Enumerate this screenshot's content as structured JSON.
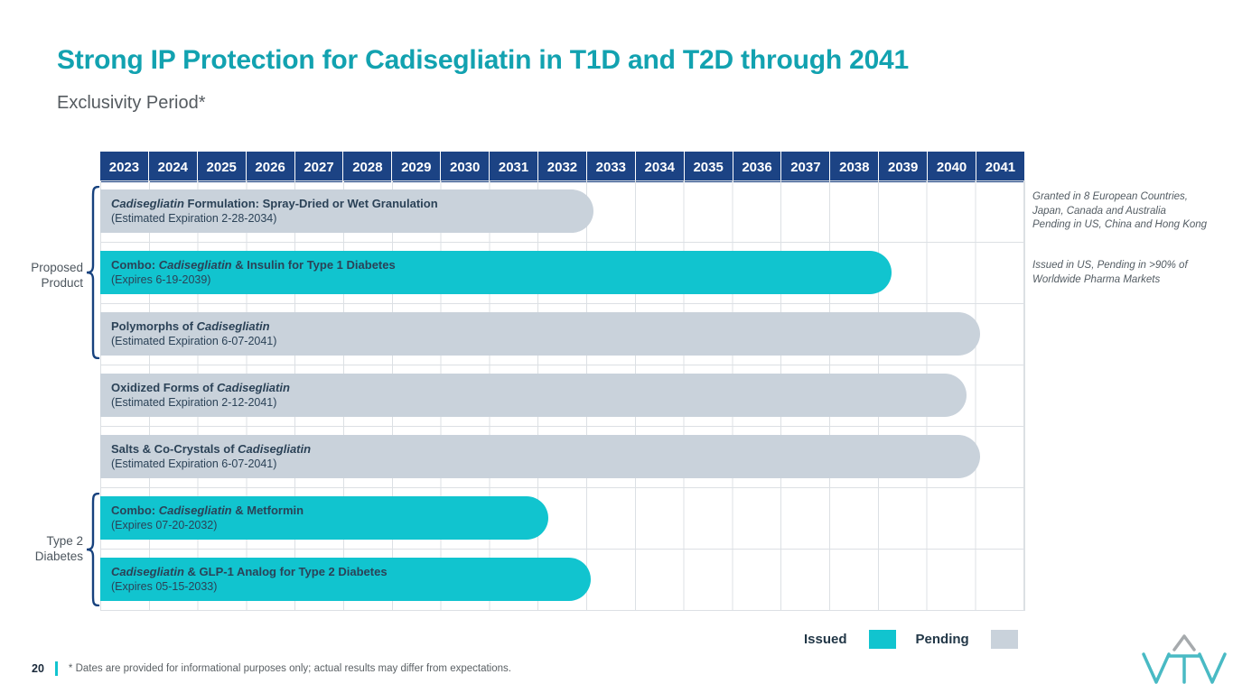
{
  "slide": {
    "title": "Strong IP Protection for Cadisegliatin in T1D and T2D through 2041",
    "subtitle": "Exclusivity Period*",
    "page_number": "20",
    "footnote": "* Dates are provided for informational purposes only; actual results may differ from expectations."
  },
  "colors": {
    "title_teal": "#12A2B0",
    "issued_cyan": "#11C4CF",
    "pending_gray": "#C9D2DB",
    "header_navy": "#1C4384",
    "bar_text": "#2B4257",
    "grid_line": "#DCE0E4",
    "annotation_text": "#535C63",
    "label_text": "#4D565E",
    "brace_navy": "#17427E",
    "legend_text": "#223747",
    "footnote_text": "#5B6165",
    "logo_teal": "#49BAC4",
    "logo_gray": "#A6AAAD"
  },
  "legend": {
    "issued_label": "Issued",
    "pending_label": "Pending"
  },
  "groups": [
    {
      "label": "Proposed Product"
    },
    {
      "label": "Type 2 Diabetes"
    }
  ],
  "annotations": [
    {
      "row": 0,
      "lines": [
        "Granted in 8 European Countries,",
        "Japan, Canada and Australia",
        "Pending in US, China and Hong Kong"
      ]
    },
    {
      "row": 1,
      "lines": [
        "Issued in US, Pending in >90% of",
        "Worldwide Pharma Markets"
      ]
    }
  ],
  "chart_data": {
    "type": "bar",
    "subtype": "gantt-exclusivity-timeline",
    "title": "Exclusivity Period*",
    "years": [
      "2023",
      "2024",
      "2025",
      "2026",
      "2027",
      "2028",
      "2029",
      "2030",
      "2031",
      "2032",
      "2033",
      "2034",
      "2035",
      "2036",
      "2037",
      "2038",
      "2039",
      "2040",
      "2041"
    ],
    "x_range": [
      2023,
      2042
    ],
    "legend_entries": [
      "Issued",
      "Pending"
    ],
    "rows": [
      {
        "title_segments": [
          {
            "t": "Cadisegliatin",
            "i": true
          },
          {
            "t": " Formulation: Spray-Dried or Wet Granulation",
            "i": false
          }
        ],
        "subtitle": "(Estimated Expiration 2-28-2034)",
        "status": "pending",
        "start": 2023,
        "bar_end": 2033.15,
        "expiration": "2-28-2034",
        "group": "Proposed Product"
      },
      {
        "title_segments": [
          {
            "t": "Combo: ",
            "i": false
          },
          {
            "t": "Cadisegliatin",
            "i": true
          },
          {
            "t": " & Insulin for Type 1 Diabetes",
            "i": false
          }
        ],
        "subtitle": "(Expires 6-19-2039)",
        "status": "issued",
        "start": 2023,
        "bar_end": 2039.28,
        "expiration": "6-19-2039",
        "group": "Proposed Product"
      },
      {
        "title_segments": [
          {
            "t": "Polymorphs of ",
            "i": false
          },
          {
            "t": "Cadisegliatin",
            "i": true
          }
        ],
        "subtitle": "(Estimated Expiration 6-07-2041)",
        "status": "pending",
        "start": 2023,
        "bar_end": 2041.1,
        "expiration": "6-07-2041",
        "group": "Proposed Product"
      },
      {
        "title_segments": [
          {
            "t": "Oxidized Forms of ",
            "i": false
          },
          {
            "t": "Cadisegliatin",
            "i": true
          }
        ],
        "subtitle": "(Estimated Expiration 2-12-2041)",
        "status": "pending",
        "start": 2023,
        "bar_end": 2040.82,
        "expiration": "2-12-2041"
      },
      {
        "title_segments": [
          {
            "t": "Salts & Co-Crystals of ",
            "i": false
          },
          {
            "t": "Cadisegliatin",
            "i": true
          }
        ],
        "subtitle": "(Estimated Expiration 6-07-2041)",
        "status": "pending",
        "start": 2023,
        "bar_end": 2041.1,
        "expiration": "6-07-2041"
      },
      {
        "title_segments": [
          {
            "t": "Combo: ",
            "i": false
          },
          {
            "t": "Cadisegliatin",
            "i": true
          },
          {
            "t": " & Metformin",
            "i": false
          }
        ],
        "subtitle": "(Expires 07-20-2032)",
        "status": "issued",
        "start": 2023,
        "bar_end": 2032.22,
        "expiration": "07-20-2032",
        "group": "Type 2 Diabetes"
      },
      {
        "title_segments": [
          {
            "t": "Cadisegliatin",
            "i": true
          },
          {
            "t": " & GLP-1 Analog for Type 2 Diabetes",
            "i": false
          }
        ],
        "subtitle": "(Expires 05-15-2033)",
        "status": "issued",
        "start": 2023,
        "bar_end": 2033.1,
        "expiration": "05-15-2033",
        "group": "Type 2 Diabetes"
      }
    ]
  }
}
